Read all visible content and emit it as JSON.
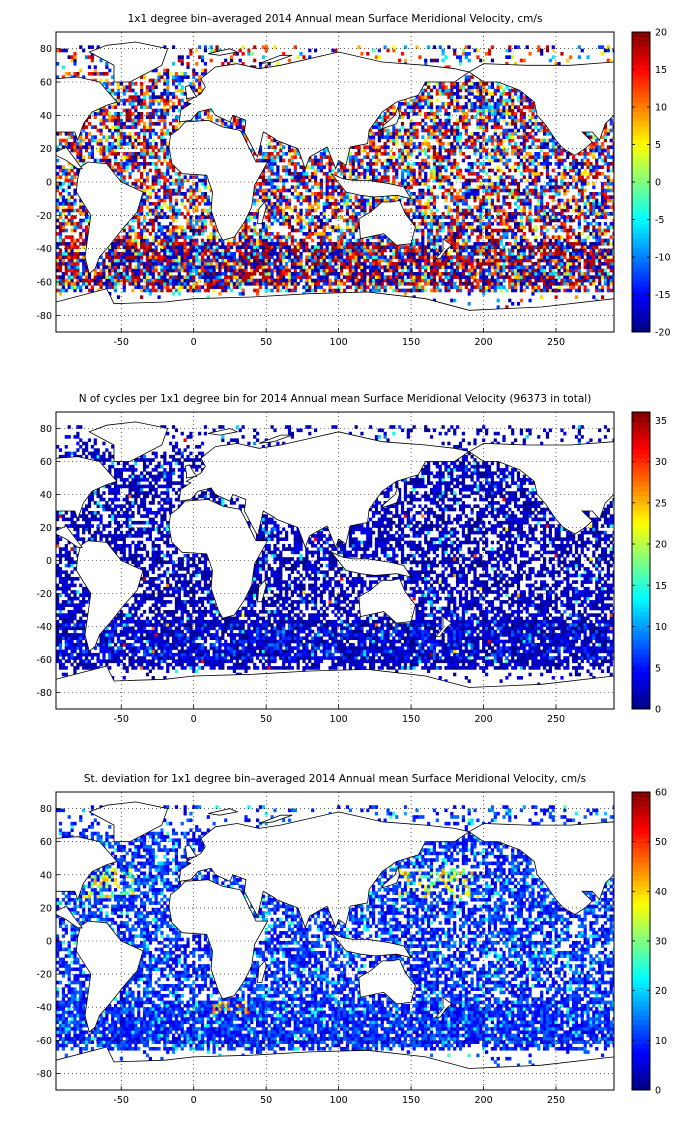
{
  "figure": {
    "panels": [
      {
        "id": "mean",
        "title": "1x1 degree bin–averaged 2014 Annual mean Surface Meridional Velocity, cm/s",
        "x_ticks": [
          -50,
          0,
          50,
          100,
          150,
          200,
          250
        ],
        "y_ticks": [
          80,
          60,
          40,
          20,
          0,
          -20,
          -40,
          -60,
          -80
        ],
        "xlim": [
          -95,
          290
        ],
        "ylim": [
          -90,
          90
        ],
        "grid": "dotted",
        "colorbar": {
          "ticks": [
            20,
            15,
            10,
            5,
            0,
            -5,
            -10,
            -15,
            -20
          ],
          "range": [
            -20,
            20
          ],
          "colormap": "jet"
        },
        "field": "diverging"
      },
      {
        "id": "count",
        "title": "N of cycles per 1x1 degree bin for 2014 Annual mean Surface Meridional Velocity (96373 in total)",
        "x_ticks": [
          -50,
          0,
          50,
          100,
          150,
          200,
          250
        ],
        "y_ticks": [
          80,
          60,
          40,
          20,
          0,
          -20,
          -40,
          -60,
          -80
        ],
        "xlim": [
          -95,
          290
        ],
        "ylim": [
          -90,
          90
        ],
        "grid": "dotted",
        "colorbar": {
          "ticks": [
            35,
            30,
            25,
            20,
            15,
            10,
            5,
            0
          ],
          "range": [
            0,
            36
          ],
          "colormap": "jet"
        },
        "field": "low-count"
      },
      {
        "id": "std",
        "title": "St. deviation for 1x1 degree bin–averaged 2014 Annual mean Surface Meridional Velocity, cm/s",
        "x_ticks": [
          -50,
          0,
          50,
          100,
          150,
          200,
          250
        ],
        "y_ticks": [
          80,
          60,
          40,
          20,
          0,
          -20,
          -40,
          -60,
          -80
        ],
        "xlim": [
          -95,
          290
        ],
        "ylim": [
          -90,
          90
        ],
        "grid": "dotted",
        "colorbar": {
          "ticks": [
            60,
            50,
            40,
            30,
            20,
            10,
            0
          ],
          "range": [
            0,
            60
          ],
          "colormap": "jet"
        },
        "field": "std"
      }
    ]
  }
}
